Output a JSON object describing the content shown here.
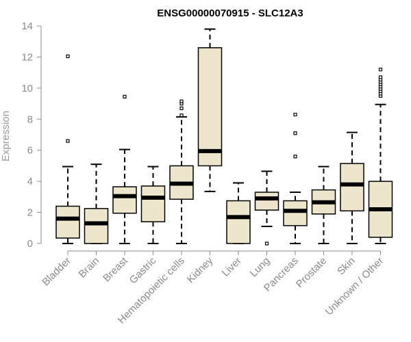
{
  "chart_data": {
    "type": "boxplot",
    "title": "ENSG00000070915 - SLC12A3",
    "xlabel": "",
    "ylabel": "Expression",
    "ylim": [
      0,
      14
    ],
    "yticks": [
      0,
      2,
      4,
      6,
      8,
      10,
      12,
      14
    ],
    "ytick_labels": [
      "0",
      "2",
      "4",
      "6",
      "8",
      "10",
      "12",
      "14"
    ],
    "box_fill": "#ede6cc",
    "box_stroke": "#000000",
    "median_color": "#000000",
    "axis_color": "#8a8a8a",
    "grid": false,
    "categories": [
      "Bladder",
      "Brain",
      "Breast",
      "Gastric",
      "Hematopoietic cells",
      "Kidney",
      "Liver",
      "Lung",
      "Pancreas",
      "Prostate",
      "Skin",
      "Unknown / Other"
    ],
    "boxes": [
      {
        "name": "Bladder",
        "whisker_low": 0.0,
        "q1": 0.35,
        "median": 1.6,
        "q3": 2.4,
        "whisker_high": 4.95,
        "outliers": [
          6.6,
          12.05
        ]
      },
      {
        "name": "Brain",
        "whisker_low": 0.0,
        "q1": 0.0,
        "median": 1.3,
        "q3": 2.25,
        "whisker_high": 5.1,
        "outliers": []
      },
      {
        "name": "Breast",
        "whisker_low": 0.0,
        "q1": 1.95,
        "median": 3.05,
        "q3": 3.65,
        "whisker_high": 6.05,
        "outliers": [
          9.45
        ]
      },
      {
        "name": "Gastric",
        "whisker_low": 0.0,
        "q1": 1.4,
        "median": 2.95,
        "q3": 3.7,
        "whisker_high": 4.95,
        "outliers": []
      },
      {
        "name": "Hematopoietic cells",
        "whisker_low": 0.0,
        "q1": 2.85,
        "median": 3.85,
        "q3": 5.0,
        "whisker_high": 8.15,
        "outliers": [
          8.25,
          8.7,
          9.0,
          9.15
        ]
      },
      {
        "name": "Kidney",
        "whisker_low": 3.35,
        "q1": 5.0,
        "median": 5.95,
        "q3": 12.6,
        "whisker_high": 13.8,
        "outliers": []
      },
      {
        "name": "Liver",
        "whisker_low": 0.0,
        "q1": 0.0,
        "median": 1.7,
        "q3": 2.75,
        "whisker_high": 3.9,
        "outliers": []
      },
      {
        "name": "Lung",
        "whisker_low": 1.1,
        "q1": 2.15,
        "median": 2.9,
        "q3": 3.3,
        "whisker_high": 4.65,
        "outliers": [
          0.0
        ]
      },
      {
        "name": "Pancreas",
        "whisker_low": 0.0,
        "q1": 1.15,
        "median": 2.1,
        "q3": 2.75,
        "whisker_high": 3.3,
        "outliers": [
          5.6,
          7.1,
          8.3
        ]
      },
      {
        "name": "Prostate",
        "whisker_low": 0.0,
        "q1": 1.9,
        "median": 2.65,
        "q3": 3.45,
        "whisker_high": 4.95,
        "outliers": []
      },
      {
        "name": "Skin",
        "whisker_low": 0.0,
        "q1": 2.1,
        "median": 3.8,
        "q3": 5.15,
        "whisker_high": 7.15,
        "outliers": []
      },
      {
        "name": "Unknown / Other",
        "whisker_low": 0.0,
        "q1": 0.4,
        "median": 2.2,
        "q3": 4.0,
        "whisker_high": 8.95,
        "outliers": [
          9.5,
          9.65,
          9.8,
          9.95,
          10.1,
          10.25,
          10.4,
          10.55,
          10.7,
          11.2
        ]
      }
    ]
  }
}
